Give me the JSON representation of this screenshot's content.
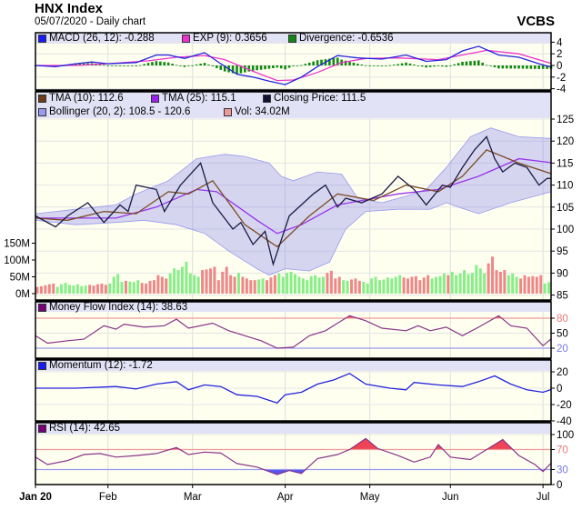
{
  "header": {
    "title": "HNX Index",
    "subtitle": "05/07/2020 - Daily chart",
    "brand": "VCBS"
  },
  "colors": {
    "macd": "#2222dd",
    "exp": "#ee33cc",
    "divergence": "#118811",
    "tma10": "#7a4a22",
    "tma25": "#9933ee",
    "close": "#1a1a44",
    "bollinger": "#8888ee",
    "vol_up": "#88ee88",
    "vol_down": "#ee8888",
    "mfi": "#883388",
    "momentum": "#2222dd",
    "rsi": "#883388",
    "over": "#ee4455",
    "under": "#5555ee"
  },
  "legends": {
    "macd": [
      {
        "label": "MACD (26, 12): -0.288",
        "color": "#1a1aff"
      },
      {
        "label": "EXP (9): 0.3656",
        "color": "#ee33cc"
      },
      {
        "label": "Divergence: -0.6536",
        "color": "#118811"
      }
    ],
    "main": [
      {
        "label": "TMA (10): 112.6",
        "color": "#6b3a1a"
      },
      {
        "label": "TMA (25): 115.1",
        "color": "#9922ee"
      },
      {
        "label": "Closing Price: 111.5",
        "color": "#111133"
      },
      {
        "label": "Bollinger (20, 2): 108.5 - 120.6",
        "color": "#9999ee"
      },
      {
        "label": "Vol: 34.02M",
        "color": "#ee9999"
      }
    ],
    "mfi": {
      "label": "Money Flow Index (14): 38.63",
      "color": "#770077"
    },
    "momentum": {
      "label": "Momentum (12): -1.72",
      "color": "#1a1aff"
    },
    "rsi": {
      "label": "RSI (14): 42.65",
      "color": "#770077"
    }
  },
  "chart_data": {
    "type": "line",
    "x_unit": "trading day index (0 = 2 Jan 2020)",
    "x_range": [
      0,
      128
    ],
    "x_ticks": [
      {
        "t": 0,
        "label": "Jan 20"
      },
      {
        "t": 18,
        "label": "Feb"
      },
      {
        "t": 39,
        "label": "Mar"
      },
      {
        "t": 62,
        "label": "Apr"
      },
      {
        "t": 83,
        "label": "May"
      },
      {
        "t": 103,
        "label": "Jun"
      },
      {
        "t": 126,
        "label": "Jul"
      }
    ],
    "macd_panel": {
      "ylim": [
        -4,
        4
      ],
      "ticks": [
        "4",
        "2",
        "0",
        "-2",
        "-4"
      ],
      "tick_values": [
        4,
        2,
        0,
        -2,
        -4
      ],
      "macd": [
        [
          0,
          0
        ],
        [
          5,
          -0.2
        ],
        [
          10,
          0.3
        ],
        [
          14,
          0.6
        ],
        [
          18,
          0.3
        ],
        [
          25,
          0.5
        ],
        [
          30,
          1.8
        ],
        [
          33,
          1.8
        ],
        [
          37,
          1.2
        ],
        [
          42,
          2.2
        ],
        [
          46,
          0.3
        ],
        [
          50,
          -1.5
        ],
        [
          54,
          -2
        ],
        [
          58,
          -2.7
        ],
        [
          62,
          -3.3
        ],
        [
          66,
          -2
        ],
        [
          70,
          -0.2
        ],
        [
          75,
          1.7
        ],
        [
          80,
          1.3
        ],
        [
          86,
          1.1
        ],
        [
          92,
          1.8
        ],
        [
          97,
          0.7
        ],
        [
          102,
          1
        ],
        [
          106,
          2.5
        ],
        [
          110,
          3.3
        ],
        [
          115,
          1.8
        ],
        [
          120,
          1.4
        ],
        [
          125,
          0.3
        ],
        [
          128,
          -0.288
        ]
      ],
      "exp": [
        [
          0,
          0
        ],
        [
          10,
          0
        ],
        [
          18,
          0.3
        ],
        [
          28,
          0.8
        ],
        [
          35,
          1.4
        ],
        [
          42,
          1.7
        ],
        [
          47,
          1.0
        ],
        [
          54,
          -1
        ],
        [
          60,
          -2.6
        ],
        [
          64,
          -2.5
        ],
        [
          70,
          -1.2
        ],
        [
          76,
          0.5
        ],
        [
          82,
          1.2
        ],
        [
          90,
          1.3
        ],
        [
          100,
          1.0
        ],
        [
          106,
          1.8
        ],
        [
          112,
          2.6
        ],
        [
          120,
          2.0
        ],
        [
          128,
          0.3656
        ]
      ]
    },
    "price_panel": {
      "ylim": [
        85,
        125
      ],
      "ticks": [
        "125",
        "120",
        "115",
        "110",
        "105",
        "100",
        "95",
        "90",
        "85"
      ],
      "tick_values": [
        125,
        120,
        115,
        110,
        105,
        100,
        95,
        90,
        85
      ],
      "close": [
        [
          0,
          103
        ],
        [
          5,
          100.5
        ],
        [
          8,
          103
        ],
        [
          13,
          106
        ],
        [
          17,
          101.5
        ],
        [
          21,
          105.5
        ],
        [
          23,
          104
        ],
        [
          25,
          110
        ],
        [
          30,
          109
        ],
        [
          32,
          104
        ],
        [
          36,
          110
        ],
        [
          41,
          115
        ],
        [
          44,
          106
        ],
        [
          49,
          100
        ],
        [
          51,
          101.5
        ],
        [
          54,
          96.5
        ],
        [
          57,
          99.5
        ],
        [
          59,
          92
        ],
        [
          63,
          103
        ],
        [
          69,
          108
        ],
        [
          72,
          110
        ],
        [
          75,
          105
        ],
        [
          77,
          107
        ],
        [
          81,
          106
        ],
        [
          86,
          108
        ],
        [
          90,
          112
        ],
        [
          94,
          109
        ],
        [
          97,
          105.5
        ],
        [
          101,
          110
        ],
        [
          103,
          109.5
        ],
        [
          106,
          114
        ],
        [
          109,
          118
        ],
        [
          112,
          121
        ],
        [
          114,
          116
        ],
        [
          116,
          113
        ],
        [
          119,
          115
        ],
        [
          122,
          114
        ],
        [
          125,
          110
        ],
        [
          127,
          111.5
        ],
        [
          128,
          111.5
        ]
      ],
      "tma10": [
        [
          0,
          102.5
        ],
        [
          8,
          102
        ],
        [
          17,
          104
        ],
        [
          25,
          103.5
        ],
        [
          33,
          108.5
        ],
        [
          38,
          108
        ],
        [
          44,
          111
        ],
        [
          52,
          101
        ],
        [
          60,
          96
        ],
        [
          68,
          103
        ],
        [
          75,
          108
        ],
        [
          84,
          106.5
        ],
        [
          92,
          110
        ],
        [
          100,
          108.5
        ],
        [
          106,
          112
        ],
        [
          112,
          118
        ],
        [
          120,
          115
        ],
        [
          128,
          112.6
        ]
      ],
      "tma25": [
        [
          0,
          102.5
        ],
        [
          20,
          102.5
        ],
        [
          30,
          105
        ],
        [
          40,
          109
        ],
        [
          45,
          108.5
        ],
        [
          55,
          102
        ],
        [
          60,
          99
        ],
        [
          66,
          101
        ],
        [
          75,
          105.5
        ],
        [
          90,
          108
        ],
        [
          100,
          109
        ],
        [
          110,
          112
        ],
        [
          120,
          116
        ],
        [
          128,
          115.1
        ]
      ],
      "bollinger_upper": [
        [
          0,
          103.5
        ],
        [
          10,
          104.5
        ],
        [
          20,
          105.5
        ],
        [
          25,
          108
        ],
        [
          33,
          111
        ],
        [
          40,
          116
        ],
        [
          47,
          117
        ],
        [
          52,
          116.5
        ],
        [
          58,
          115
        ],
        [
          61,
          112
        ],
        [
          64,
          111
        ],
        [
          70,
          113
        ],
        [
          76,
          112.5
        ],
        [
          80,
          107
        ],
        [
          86,
          106
        ],
        [
          92,
          107.5
        ],
        [
          97,
          109
        ],
        [
          102,
          114
        ],
        [
          108,
          121
        ],
        [
          113,
          123
        ],
        [
          120,
          121
        ],
        [
          128,
          120.6
        ]
      ],
      "bollinger_lower": [
        [
          0,
          102
        ],
        [
          10,
          101
        ],
        [
          20,
          101.5
        ],
        [
          27,
          102
        ],
        [
          35,
          101
        ],
        [
          42,
          99
        ],
        [
          48,
          95
        ],
        [
          55,
          91
        ],
        [
          58,
          89.5
        ],
        [
          62,
          91
        ],
        [
          68,
          90.5
        ],
        [
          73,
          92.5
        ],
        [
          77,
          100
        ],
        [
          82,
          104
        ],
        [
          90,
          104.5
        ],
        [
          98,
          104.5
        ],
        [
          102,
          106
        ],
        [
          105,
          105
        ],
        [
          110,
          103.5
        ],
        [
          118,
          106
        ],
        [
          124,
          107.5
        ],
        [
          128,
          108.5
        ]
      ]
    },
    "volume": {
      "unit": "M",
      "ticks": [
        "150M",
        "100M",
        "50M",
        "0M"
      ],
      "tick_values": [
        150,
        100,
        50,
        0
      ],
      "values": [
        20,
        22,
        25,
        28,
        30,
        20,
        28,
        32,
        26,
        24,
        28,
        22,
        24,
        26,
        24,
        28,
        30,
        26,
        30,
        50,
        58,
        35,
        38,
        36,
        34,
        40,
        32,
        30,
        38,
        40,
        55,
        50,
        45,
        60,
        75,
        70,
        80,
        95,
        60,
        55,
        50,
        70,
        72,
        75,
        80,
        40,
        65,
        80,
        55,
        50,
        62,
        50,
        45,
        40,
        40,
        42,
        45,
        40,
        48,
        55,
        60,
        50,
        62,
        65,
        58,
        50,
        45,
        40,
        52,
        55,
        48,
        50,
        62,
        68,
        45,
        50,
        40,
        38,
        42,
        45,
        38,
        35,
        30,
        45,
        50,
        40,
        42,
        48,
        45,
        50,
        55,
        48,
        45,
        50,
        52,
        40,
        48,
        55,
        45,
        50,
        52,
        60,
        55,
        65,
        55,
        60,
        70,
        58,
        62,
        85,
        75,
        60,
        90,
        110,
        70,
        65,
        70,
        55,
        60,
        50,
        45,
        55,
        50,
        52,
        50,
        55,
        30,
        34.02
      ]
    },
    "mfi_panel": {
      "ylim": [
        0,
        100
      ],
      "ticks": [
        "80",
        "50",
        "20"
      ],
      "tick_values": [
        80,
        50,
        20
      ],
      "values": [
        [
          0,
          45
        ],
        [
          3,
          30
        ],
        [
          8,
          35
        ],
        [
          12,
          38
        ],
        [
          17,
          65
        ],
        [
          20,
          58
        ],
        [
          22,
          68
        ],
        [
          27,
          62
        ],
        [
          32,
          65
        ],
        [
          35,
          78
        ],
        [
          38,
          60
        ],
        [
          44,
          70
        ],
        [
          48,
          55
        ],
        [
          52,
          45
        ],
        [
          56,
          35
        ],
        [
          60,
          20
        ],
        [
          64,
          22
        ],
        [
          68,
          45
        ],
        [
          72,
          55
        ],
        [
          75,
          70
        ],
        [
          78,
          85
        ],
        [
          82,
          75
        ],
        [
          86,
          60
        ],
        [
          92,
          55
        ],
        [
          95,
          65
        ],
        [
          98,
          55
        ],
        [
          102,
          62
        ],
        [
          106,
          45
        ],
        [
          110,
          62
        ],
        [
          115,
          85
        ],
        [
          118,
          65
        ],
        [
          122,
          60
        ],
        [
          126,
          25
        ],
        [
          128,
          38.63
        ]
      ]
    },
    "momentum_panel": {
      "ylim": [
        -40,
        20
      ],
      "ticks": [
        "20",
        "0",
        "-20",
        "-40"
      ],
      "tick_values": [
        20,
        0,
        -20,
        -40
      ],
      "values": [
        [
          0,
          0
        ],
        [
          10,
          0
        ],
        [
          20,
          2
        ],
        [
          25,
          -1
        ],
        [
          30,
          5
        ],
        [
          35,
          8
        ],
        [
          38,
          -2
        ],
        [
          42,
          4
        ],
        [
          46,
          2
        ],
        [
          50,
          -8
        ],
        [
          55,
          -10
        ],
        [
          60,
          -18
        ],
        [
          62,
          -8
        ],
        [
          66,
          -5
        ],
        [
          70,
          5
        ],
        [
          74,
          10
        ],
        [
          78,
          18
        ],
        [
          82,
          5
        ],
        [
          88,
          0
        ],
        [
          92,
          -2
        ],
        [
          94,
          7
        ],
        [
          100,
          4
        ],
        [
          106,
          2
        ],
        [
          110,
          8
        ],
        [
          114,
          15
        ],
        [
          118,
          5
        ],
        [
          122,
          -2
        ],
        [
          126,
          -5
        ],
        [
          128,
          -1.72
        ]
      ]
    },
    "rsi_panel": {
      "ylim": [
        0,
        100
      ],
      "ticks": [
        "100",
        "70",
        "30",
        "0"
      ],
      "tick_values": [
        100,
        70,
        30,
        0
      ],
      "values": [
        [
          0,
          55
        ],
        [
          3,
          40
        ],
        [
          8,
          48
        ],
        [
          12,
          60
        ],
        [
          16,
          62
        ],
        [
          20,
          55
        ],
        [
          25,
          58
        ],
        [
          30,
          62
        ],
        [
          35,
          74
        ],
        [
          38,
          60
        ],
        [
          42,
          65
        ],
        [
          46,
          63
        ],
        [
          50,
          42
        ],
        [
          55,
          35
        ],
        [
          60,
          20
        ],
        [
          63,
          28
        ],
        [
          66,
          22
        ],
        [
          70,
          52
        ],
        [
          75,
          60
        ],
        [
          78,
          70
        ],
        [
          82,
          92
        ],
        [
          85,
          72
        ],
        [
          90,
          58
        ],
        [
          94,
          45
        ],
        [
          98,
          55
        ],
        [
          100,
          80
        ],
        [
          103,
          55
        ],
        [
          108,
          50
        ],
        [
          112,
          70
        ],
        [
          116,
          90
        ],
        [
          120,
          58
        ],
        [
          124,
          40
        ],
        [
          126,
          26
        ],
        [
          128,
          42.65
        ]
      ]
    }
  }
}
